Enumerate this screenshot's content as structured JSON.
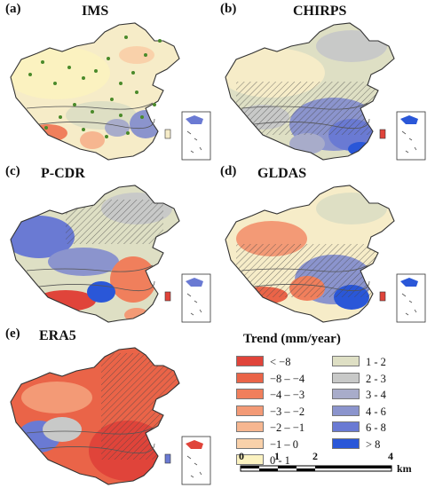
{
  "panels": [
    {
      "id": "ims",
      "label": "(a)",
      "title": "IMS",
      "theme": "ims"
    },
    {
      "id": "chirps",
      "label": "(b)",
      "title": "CHIRPS",
      "theme": "chirps"
    },
    {
      "id": "pcdr",
      "label": "(c)",
      "title": "P-CDR",
      "theme": "pcdr"
    },
    {
      "id": "gldas",
      "label": "(d)",
      "title": "GLDAS",
      "theme": "gldas"
    },
    {
      "id": "era5",
      "label": "(e)",
      "title": "ERA5",
      "theme": "era5"
    }
  ],
  "legend": {
    "title": "Trend (mm/year)",
    "left_items": [
      {
        "label": "< −8",
        "color": "#e0443a"
      },
      {
        "label": "−8 – −4",
        "color": "#ea6448"
      },
      {
        "label": "−4 – −3",
        "color": "#f07f5c"
      },
      {
        "label": "−3 – −2",
        "color": "#f39a76"
      },
      {
        "label": "−2 – −1",
        "color": "#f6b690"
      },
      {
        "label": "−1 – 0",
        "color": "#f9d1aa"
      },
      {
        "label": "0 - 1",
        "color": "#fbf2c0"
      }
    ],
    "right_items": [
      {
        "label": "1 - 2",
        "color": "#dedfc4"
      },
      {
        "label": "2 - 3",
        "color": "#c8c9c8"
      },
      {
        "label": "3 - 4",
        "color": "#a8acca"
      },
      {
        "label": "4 - 6",
        "color": "#8b94cd"
      },
      {
        "label": "6 - 8",
        "color": "#6a7ad3"
      },
      {
        "label": "> 8",
        "color": "#2a57d8"
      }
    ]
  },
  "scale_bar": {
    "ticks": [
      "0",
      "1",
      "2",
      "4"
    ],
    "unit": "km"
  },
  "colors": {
    "station_dot": "#4a8a2a",
    "border": "#444444"
  }
}
